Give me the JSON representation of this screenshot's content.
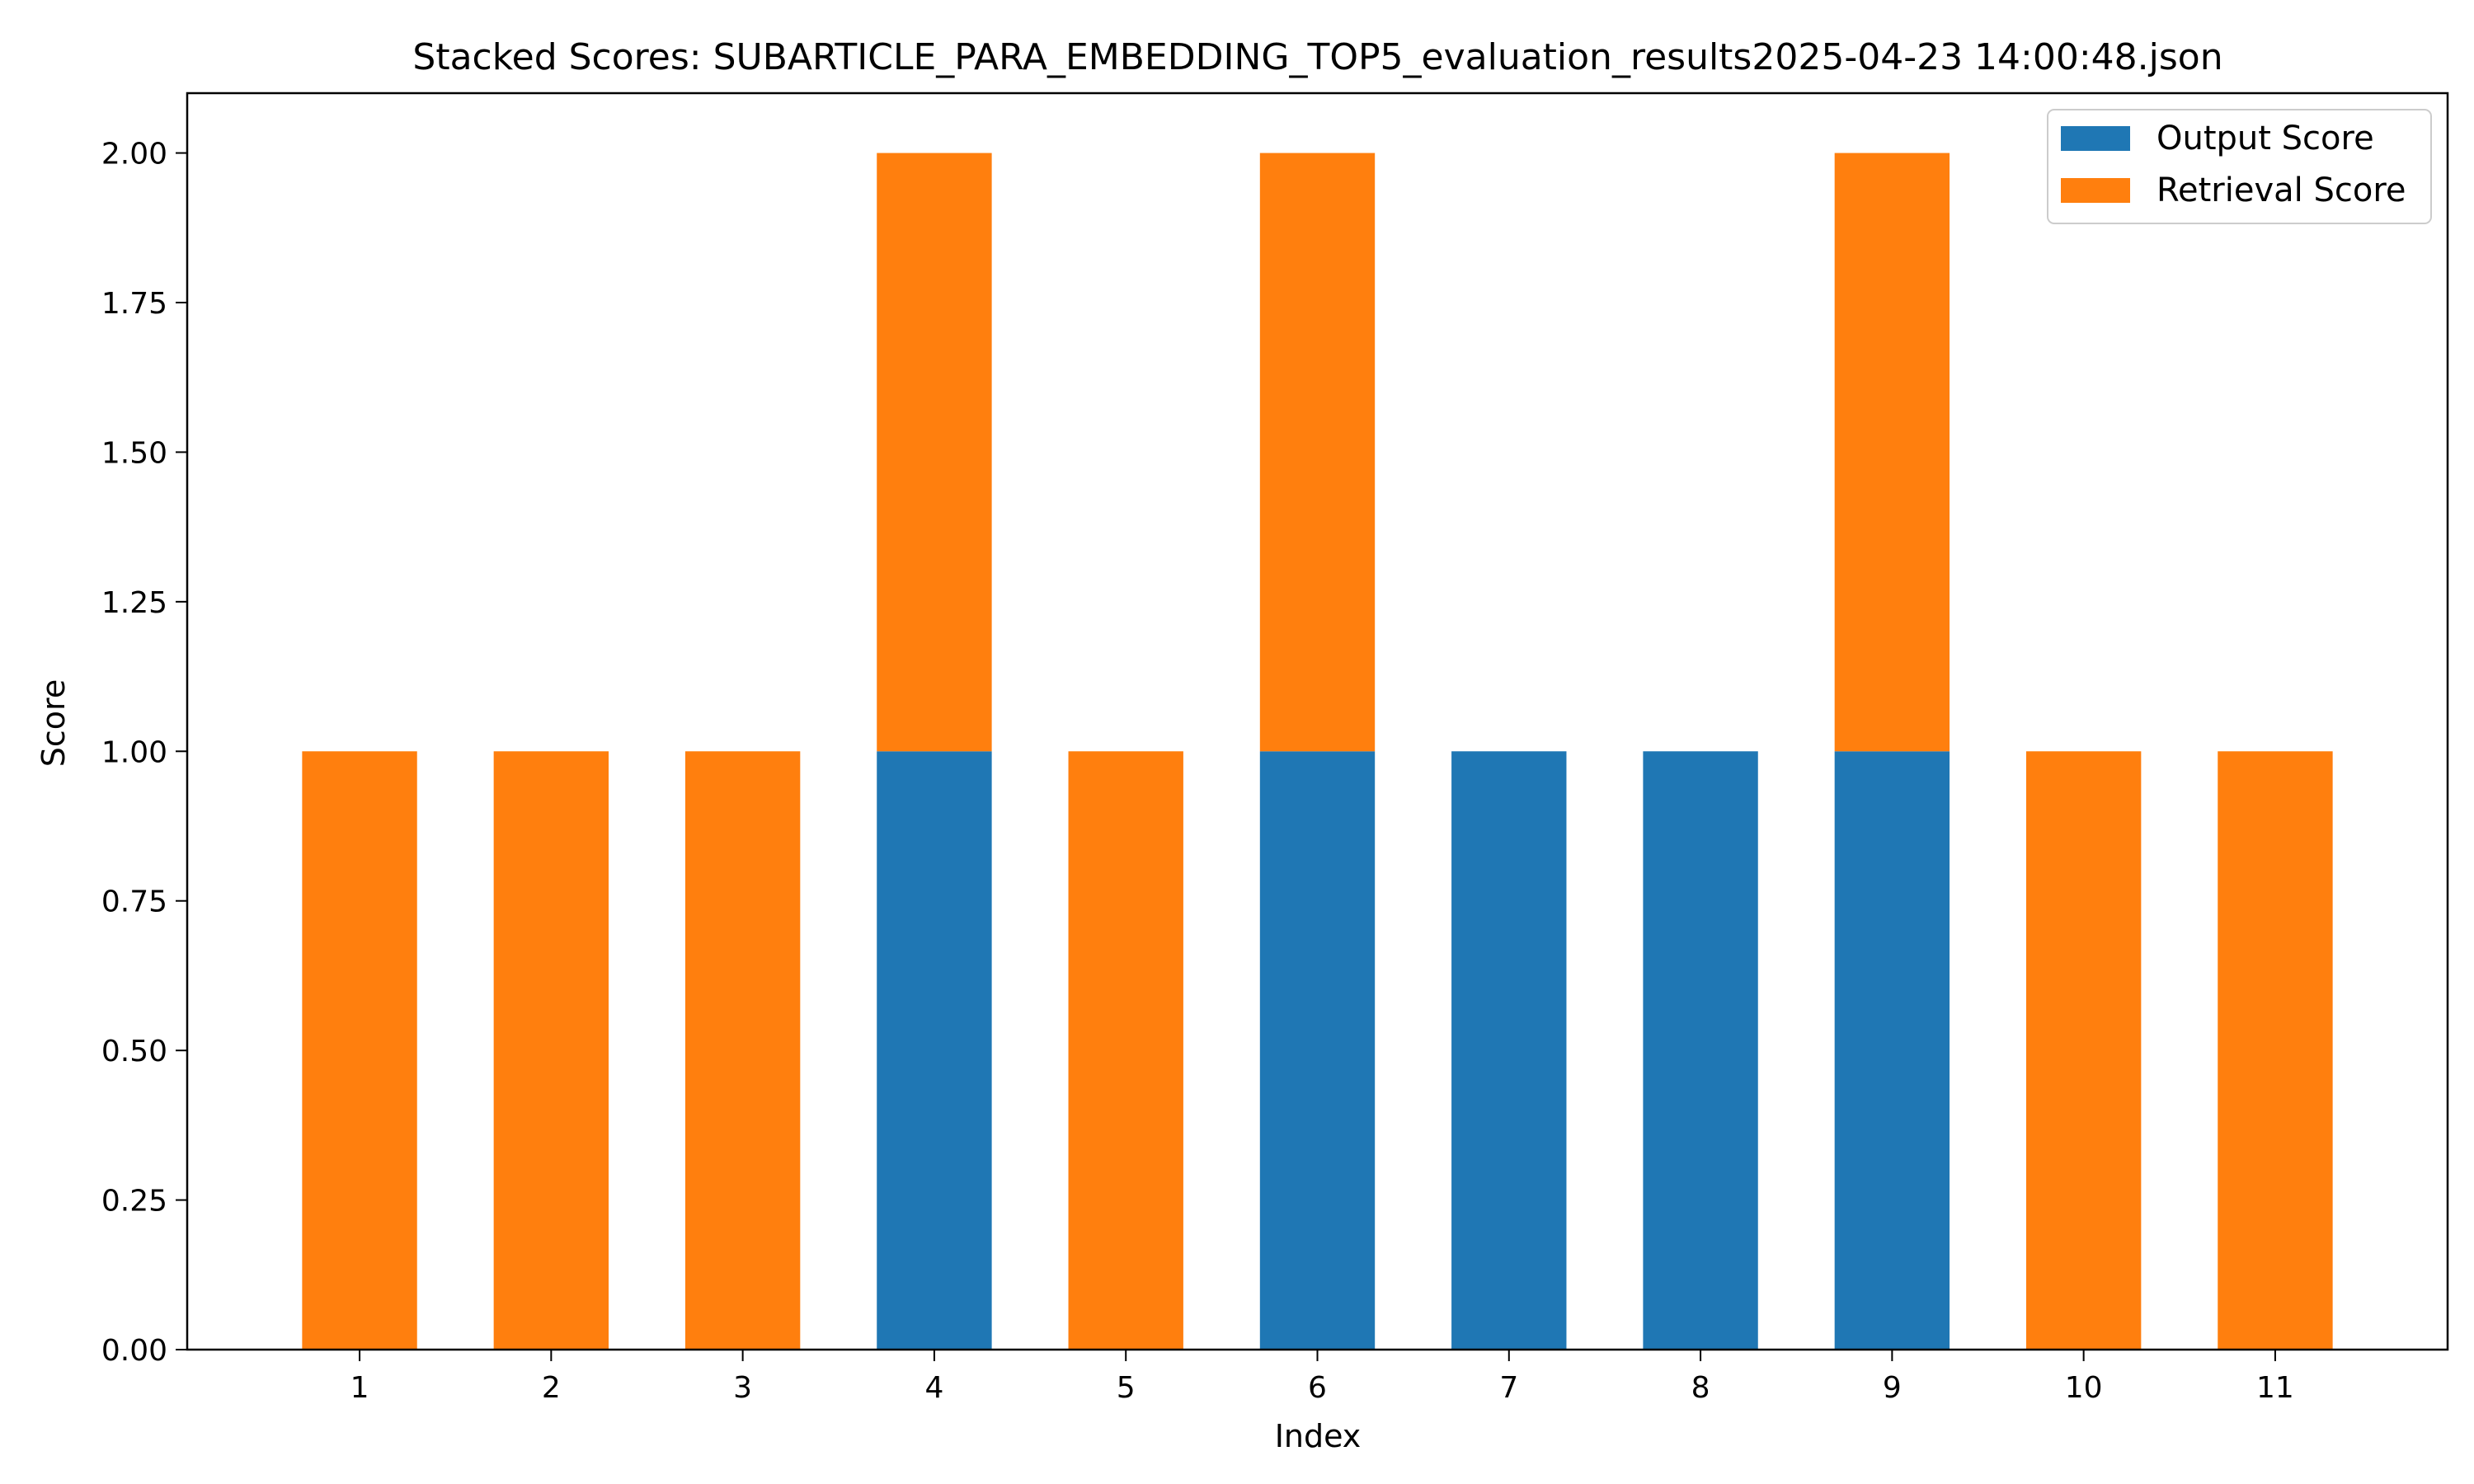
{
  "chart_data": {
    "type": "bar",
    "stacked": true,
    "title": "Stacked Scores: SUBARTICLE_PARA_EMBEDDING_TOP5_evaluation_results2025-04-23 14:00:48.json",
    "xlabel": "Index",
    "ylabel": "Score",
    "categories": [
      "1",
      "2",
      "3",
      "4",
      "5",
      "6",
      "7",
      "8",
      "9",
      "10",
      "11"
    ],
    "series": [
      {
        "name": "Output Score",
        "color": "#1f77b4",
        "values": [
          0,
          0,
          0,
          1,
          0,
          1,
          1,
          1,
          1,
          0,
          0
        ]
      },
      {
        "name": "Retrieval Score",
        "color": "#ff7f0e",
        "values": [
          1,
          1,
          1,
          1,
          1,
          1,
          0,
          0,
          1,
          1,
          1
        ]
      }
    ],
    "ylim": [
      0,
      2.1
    ],
    "yticks": [
      "0.00",
      "0.25",
      "0.50",
      "0.75",
      "1.00",
      "1.25",
      "1.50",
      "1.75",
      "2.00"
    ],
    "grid": false,
    "legend_position": "top-right"
  }
}
